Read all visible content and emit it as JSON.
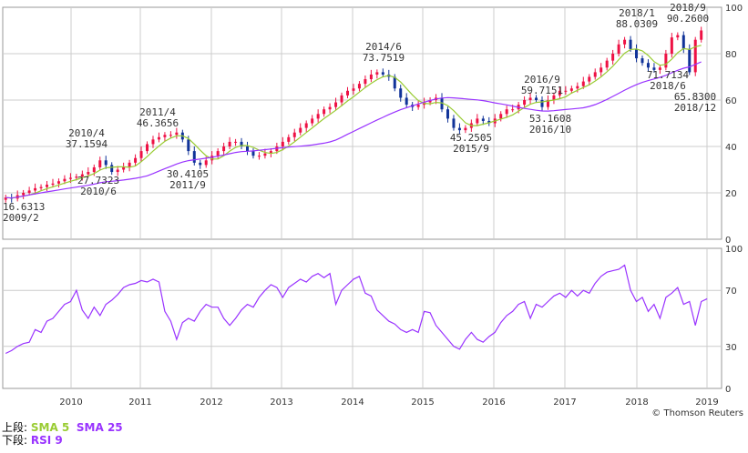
{
  "chart_data": {
    "type": "candlestick",
    "credit": "© Thomson Reuters",
    "x_tick_labels": [
      "2010",
      "2011",
      "2012",
      "2013",
      "2014",
      "2015",
      "2016",
      "2017",
      "2018",
      "2019"
    ],
    "upper": {
      "ylim": [
        0,
        100
      ],
      "y_ticks": [
        0,
        20,
        40,
        60,
        80,
        100
      ],
      "grid": true,
      "series": [
        {
          "name": "SMA 5",
          "color": "#99cc33"
        },
        {
          "name": "SMA 25",
          "color": "#9933ff"
        }
      ],
      "monthly_close": [
        18,
        17.5,
        19,
        20,
        21,
        22,
        22.5,
        23.5,
        24,
        25,
        26,
        26.5,
        27,
        28,
        29,
        31,
        34,
        32,
        29,
        30,
        31,
        33,
        35,
        38,
        41,
        43,
        44,
        45,
        45,
        46,
        43,
        38,
        33,
        32,
        34,
        36,
        38,
        40,
        42,
        42,
        40,
        38,
        36,
        36,
        37,
        38,
        40,
        42,
        44,
        46,
        48,
        50,
        52,
        54,
        56,
        57,
        59,
        62,
        64,
        65,
        67,
        69,
        71,
        72,
        71,
        70,
        65,
        61,
        58,
        57,
        58,
        59,
        60,
        61,
        56,
        52,
        48,
        47,
        48,
        50,
        52,
        51,
        50,
        52,
        54,
        56,
        56,
        58,
        60,
        61,
        60,
        57,
        60,
        62,
        64,
        64,
        65,
        66,
        68,
        70,
        72,
        74,
        77,
        80,
        84,
        86,
        82,
        78,
        76,
        74,
        73,
        74,
        80,
        87,
        88,
        82,
        72,
        86,
        90
      ],
      "annotations": [
        {
          "lines": [
            "16.6313",
            "2009/2"
          ]
        },
        {
          "lines": [
            "2010/4",
            "37.1594"
          ]
        },
        {
          "lines": [
            "27.7323",
            "2010/6"
          ]
        },
        {
          "lines": [
            "2011/4",
            "46.3656"
          ]
        },
        {
          "lines": [
            "30.4105",
            "2011/9"
          ]
        },
        {
          "lines": [
            "2014/6",
            "73.7519"
          ]
        },
        {
          "lines": [
            "45.2505",
            "2015/9"
          ]
        },
        {
          "lines": [
            "2016/9",
            "59.7151"
          ]
        },
        {
          "lines": [
            "53.1608",
            "2016/10"
          ]
        },
        {
          "lines": [
            "2018/1",
            "88.0309"
          ]
        },
        {
          "lines": [
            "71.7134",
            "2018/6"
          ]
        },
        {
          "lines": [
            "2018/9",
            "90.2600"
          ]
        },
        {
          "lines": [
            "65.8300",
            "2018/12"
          ]
        }
      ]
    },
    "lower": {
      "ylim": [
        0,
        100
      ],
      "y_ticks": [
        0,
        30,
        70,
        100
      ],
      "grid": true,
      "series": [
        {
          "name": "RSI 9",
          "color": "#9933ff",
          "values": [
            25,
            27,
            30,
            32,
            33,
            42,
            40,
            48,
            50,
            55,
            60,
            62,
            70,
            56,
            50,
            58,
            52,
            60,
            63,
            67,
            72,
            74,
            75,
            77,
            76,
            78,
            76,
            55,
            48,
            35,
            47,
            50,
            48,
            55,
            60,
            58,
            58,
            50,
            45,
            50,
            56,
            60,
            58,
            65,
            70,
            74,
            72,
            65,
            72,
            75,
            78,
            76,
            80,
            82,
            79,
            82,
            60,
            70,
            74,
            78,
            80,
            68,
            66,
            56,
            52,
            48,
            46,
            42,
            40,
            42,
            40,
            55,
            54,
            45,
            40,
            35,
            30,
            28,
            35,
            40,
            35,
            33,
            37,
            40,
            47,
            52,
            55,
            60,
            62,
            50,
            60,
            58,
            62,
            66,
            68,
            65,
            70,
            66,
            70,
            68,
            75,
            80,
            83,
            84,
            85,
            88,
            70,
            62,
            65,
            55,
            60,
            50,
            65,
            68,
            72,
            60,
            62,
            45,
            62,
            64
          ]
        }
      ]
    },
    "legend": {
      "upper_prefix": "上段: ",
      "lower_prefix": "下段: ",
      "sma5": "SMA 5",
      "sma25": "SMA 25",
      "rsi": "RSI 9"
    },
    "colors": {
      "up": "#ee1144",
      "down": "#113399",
      "sma5": "#99cc33",
      "sma25": "#9933ff",
      "rsi": "#9933ff",
      "grid": "#cccccc"
    }
  }
}
